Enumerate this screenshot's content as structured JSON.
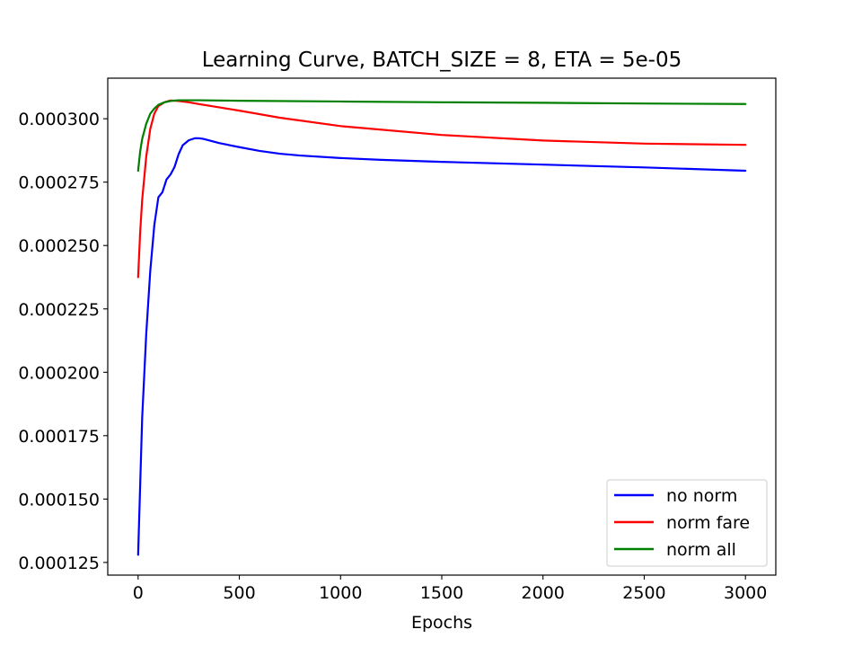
{
  "chart_data": {
    "type": "line",
    "title": "Learning Curve, BATCH_SIZE = 8, ETA = 5e-05",
    "xlabel": "Epochs",
    "ylabel": "",
    "xlim": [
      -150,
      3150
    ],
    "ylim": [
      0.00012,
      0.000316
    ],
    "xticks": [
      0,
      500,
      1000,
      1500,
      2000,
      2500,
      3000
    ],
    "xtick_labels": [
      "0",
      "500",
      "1000",
      "1500",
      "2000",
      "2500",
      "3000"
    ],
    "yticks": [
      0.000125,
      0.00015,
      0.000175,
      0.0002,
      0.000225,
      0.00025,
      0.000275,
      0.0003
    ],
    "ytick_labels": [
      "0.000125",
      "0.000150",
      "0.000175",
      "0.000200",
      "0.000225",
      "0.000250",
      "0.000275",
      "0.000300"
    ],
    "grid": false,
    "legend_position": "lower-right",
    "series": [
      {
        "name": "no norm",
        "color": "#0000ff",
        "x": [
          0,
          10,
          20,
          40,
          60,
          80,
          100,
          120,
          140,
          160,
          180,
          200,
          220,
          250,
          280,
          300,
          320,
          350,
          400,
          500,
          600,
          700,
          800,
          1000,
          1200,
          1500,
          2000,
          2500,
          3000
        ],
        "y": [
          0.000128,
          0.000155,
          0.000182,
          0.000215,
          0.00024,
          0.000258,
          0.000269,
          0.000271,
          0.000276,
          0.000278,
          0.000281,
          0.000286,
          0.0002895,
          0.0002915,
          0.0002923,
          0.0002923,
          0.0002921,
          0.0002915,
          0.0002904,
          0.0002888,
          0.0002873,
          0.0002862,
          0.0002855,
          0.0002845,
          0.0002838,
          0.000283,
          0.0002819,
          0.0002808,
          0.0002795
        ]
      },
      {
        "name": "norm fare",
        "color": "#ff0000",
        "x": [
          0,
          10,
          20,
          40,
          60,
          80,
          100,
          130,
          160,
          200,
          250,
          300,
          400,
          500,
          700,
          1000,
          1500,
          2000,
          2500,
          3000
        ],
        "y": [
          0.0002375,
          0.000255,
          0.000268,
          0.000285,
          0.000296,
          0.000302,
          0.000305,
          0.0003065,
          0.0003072,
          0.000307,
          0.0003065,
          0.0003058,
          0.0003045,
          0.0003032,
          0.0003004,
          0.0002971,
          0.0002936,
          0.0002914,
          0.0002902,
          0.0002897
        ]
      },
      {
        "name": "norm all",
        "color": "#008000",
        "x": [
          0,
          10,
          20,
          40,
          60,
          80,
          100,
          130,
          160,
          200,
          250,
          300,
          500,
          1000,
          1500,
          2000,
          2500,
          3000
        ],
        "y": [
          0.0002795,
          0.000287,
          0.000292,
          0.000298,
          0.000302,
          0.000304,
          0.0003055,
          0.0003065,
          0.000307,
          0.0003073,
          0.0003073,
          0.0003073,
          0.0003071,
          0.0003068,
          0.0003065,
          0.0003063,
          0.000306,
          0.0003058
        ]
      }
    ]
  }
}
